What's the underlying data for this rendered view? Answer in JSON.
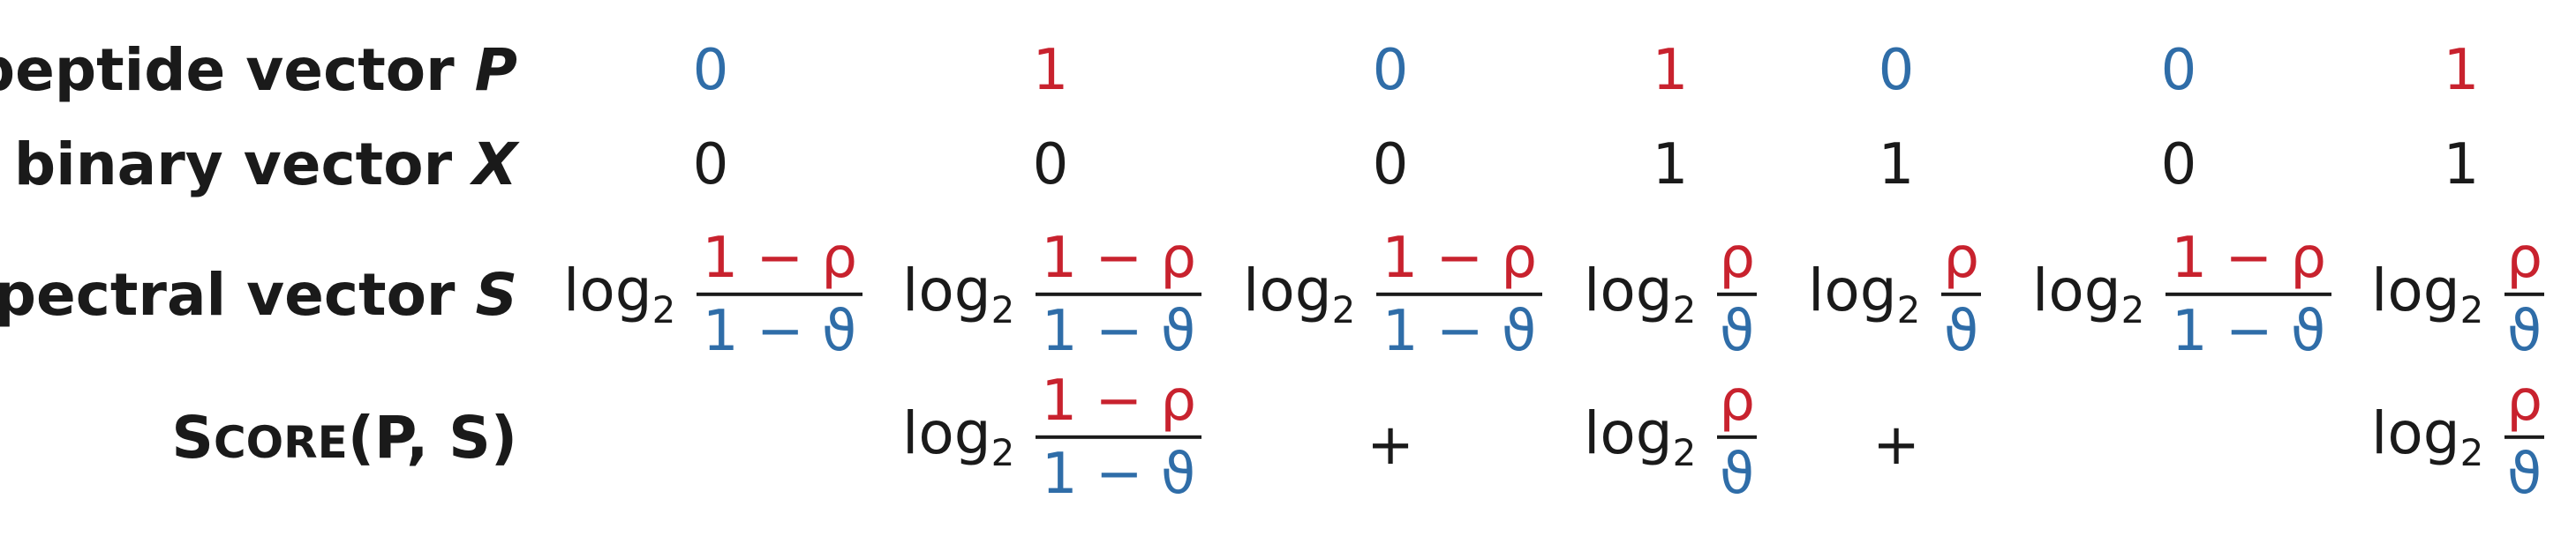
{
  "rows": {
    "peptide": {
      "label": "peptide vector ",
      "var": "P",
      "values": [
        "0",
        "1",
        "0",
        "1",
        "0",
        "0",
        "1"
      ]
    },
    "binary": {
      "label": "binary vector ",
      "var": "X",
      "values": [
        "0",
        "0",
        "0",
        "1",
        "1",
        "0",
        "1"
      ]
    },
    "spectral": {
      "label": "spectral vector ",
      "var": "S"
    },
    "score": {
      "sc_first": "S",
      "sc_rest": "CORE",
      "args": "(P, S)"
    }
  },
  "math": {
    "log": "log",
    "log_base": "2",
    "absent_num": "1 − ρ",
    "absent_den": "1 − ϑ",
    "present_num": "ρ",
    "present_den": "ϑ",
    "plus": "+"
  },
  "colors": {
    "zero": "#2f6da8",
    "one": "#c8222e",
    "text": "#1a1a1a"
  }
}
